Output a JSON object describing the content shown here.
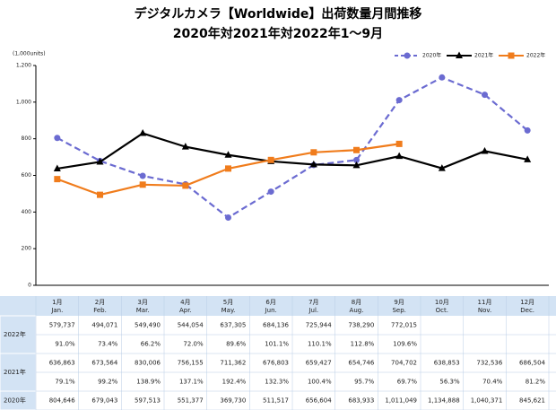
{
  "chart_data": {
    "type": "line",
    "title": "デジタルカメラ【Worldwide】出荷数量月間推移",
    "subtitle": "2020年対2021年対2022年1〜9月",
    "y_unit": "(1,000units)",
    "categories": [
      null,
      null,
      null,
      null,
      null,
      null,
      null,
      null,
      null,
      null,
      null,
      null
    ],
    "ylim": [
      0,
      1200
    ],
    "yticks": [
      0,
      200,
      400,
      600,
      800,
      {
        "value": 1000,
        "label": "1,000"
      },
      {
        "value": 1200,
        "label": "1,200"
      }
    ],
    "grid": false,
    "legend": "top-right",
    "series": [
      {
        "name": "2020年",
        "color": "#6b6bd1",
        "dash": true,
        "marker": "circle",
        "values": [
          804.646,
          679.043,
          597.513,
          551.377,
          369.73,
          511.517,
          656.604,
          683.933,
          1011.049,
          1134.888,
          1040.371,
          845.621
        ]
      },
      {
        "name": "2021年",
        "color": "#000000",
        "dash": false,
        "marker": "triangle",
        "values": [
          636.863,
          673.564,
          830.006,
          756.155,
          711.362,
          676.803,
          659.427,
          654.746,
          704.702,
          638.853,
          732.536,
          686.504
        ]
      },
      {
        "name": "2022年",
        "color": "#f07c1c",
        "dash": false,
        "marker": "square",
        "values": [
          579.737,
          494.071,
          549.49,
          544.054,
          637.305,
          684.136,
          725.944,
          738.29,
          772.015,
          null,
          null,
          null
        ]
      }
    ]
  },
  "table": {
    "columns": [
      [
        "1月",
        "Jan."
      ],
      [
        "2月",
        "Feb."
      ],
      [
        "3月",
        "Mar."
      ],
      [
        "4月",
        "Apr."
      ],
      [
        "5月",
        "May."
      ],
      [
        "6月",
        "Jun."
      ],
      [
        "7月",
        "Jul."
      ],
      [
        "8月",
        "Aug."
      ],
      [
        "9月",
        "Sep."
      ],
      [
        "10月",
        "Oct."
      ],
      [
        "11月",
        "Nov."
      ],
      [
        "12月",
        "Dec."
      ]
    ],
    "rows": [
      {
        "label": "2022年",
        "values": [
          "579,737",
          "494,071",
          "549,490",
          "544,054",
          "637,305",
          "684,136",
          "725,944",
          "738,290",
          "772,015",
          null,
          null,
          null
        ],
        "ratios": [
          "91.0%",
          "73.4%",
          "66.2%",
          "72.0%",
          "89.6%",
          "101.1%",
          "110.1%",
          "112.8%",
          "109.6%",
          null,
          null,
          null
        ]
      },
      {
        "label": "2021年",
        "values": [
          "636,863",
          "673,564",
          "830,006",
          "756,155",
          "711,362",
          "676,803",
          "659,427",
          "654,746",
          "704,702",
          "638,853",
          "732,536",
          "686,504"
        ],
        "ratios": [
          "79.1%",
          "99.2%",
          "138.9%",
          "137.1%",
          "192.4%",
          "132.3%",
          "100.4%",
          "95.7%",
          "69.7%",
          "56.3%",
          "70.4%",
          "81.2%"
        ]
      },
      {
        "label": "2020年",
        "values": [
          "804,646",
          "679,043",
          "597,513",
          "551,377",
          "369,730",
          "511,517",
          "656,604",
          "683,933",
          "1,011,049",
          "1,134,888",
          "1,040,371",
          "845,621"
        ]
      }
    ]
  }
}
